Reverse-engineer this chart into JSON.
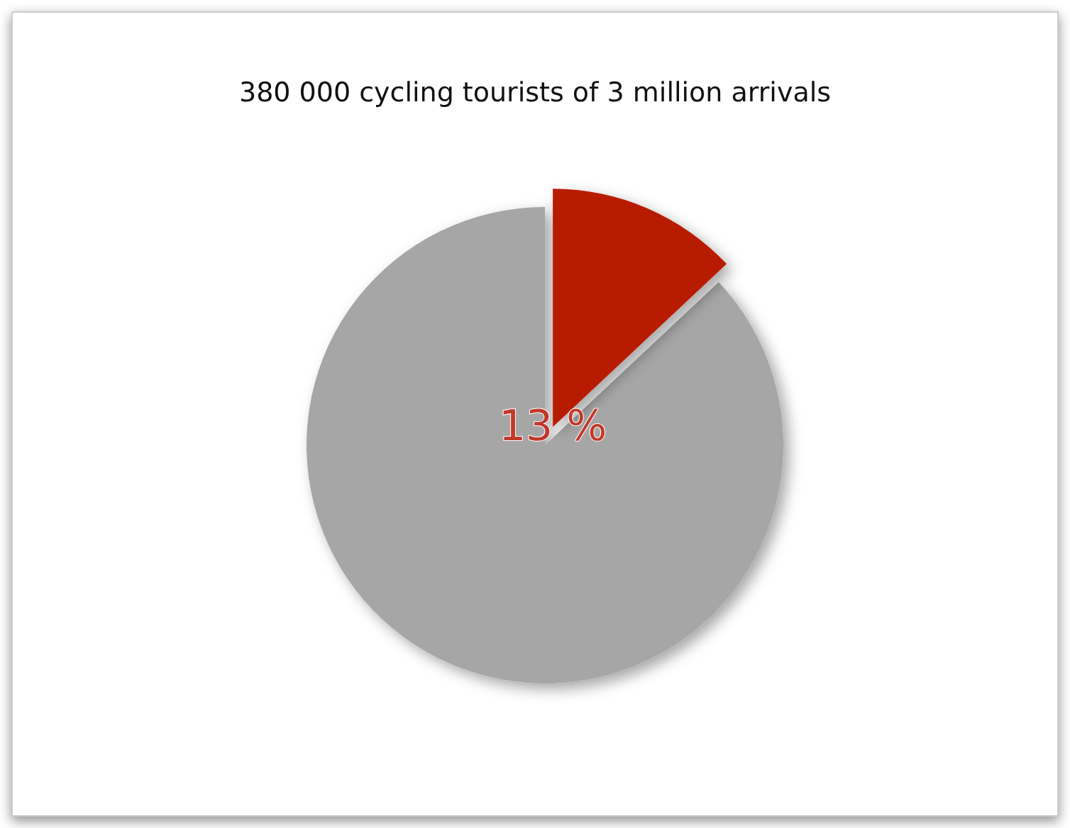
{
  "chart_data": {
    "type": "pie",
    "title": "380 000 cycling tourists of 3 million arrivals",
    "categories": [
      null,
      null
    ],
    "values": [
      13,
      87
    ],
    "colors": [
      "#b81c00",
      "#a6a6a6"
    ],
    "value_labels": [
      "13 %",
      null
    ]
  }
}
